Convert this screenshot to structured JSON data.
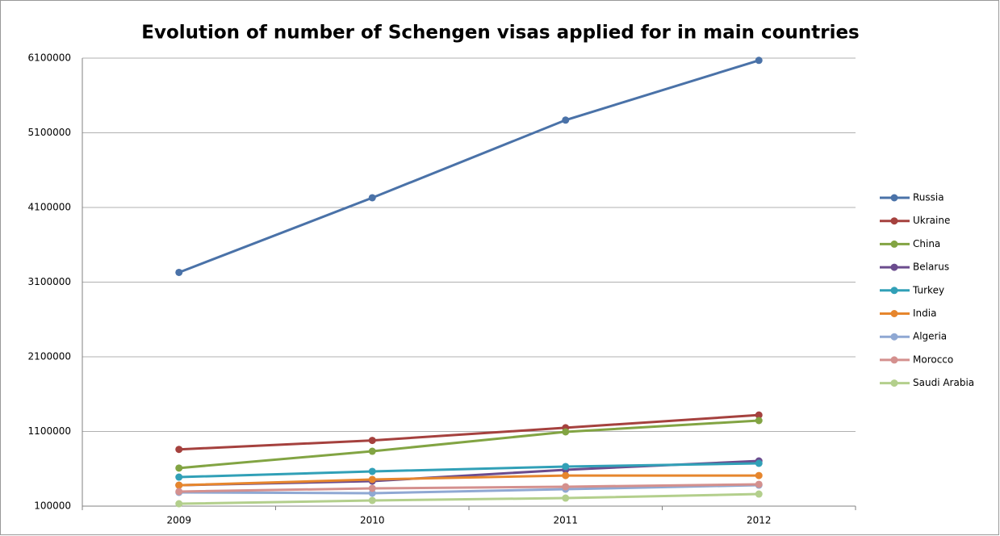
{
  "chart_data": {
    "type": "line",
    "title": "Evolution of number of Schengen visas applied for in main countries",
    "categories": [
      "2009",
      "2010",
      "2011",
      "2012"
    ],
    "ylim": [
      100000,
      6100000
    ],
    "yticks": [
      100000,
      1100000,
      2100000,
      3100000,
      4100000,
      5100000,
      6100000
    ],
    "grid": true,
    "legend": "right",
    "series": [
      {
        "name": "Russia",
        "color": "#4a72a8",
        "values": [
          3230000,
          4230000,
          5270000,
          6070000
        ]
      },
      {
        "name": "Ukraine",
        "color": "#a5413e",
        "values": [
          860000,
          980000,
          1150000,
          1320000
        ]
      },
      {
        "name": "China",
        "color": "#82a443",
        "values": [
          610000,
          835000,
          1095000,
          1246000
        ]
      },
      {
        "name": "Belarus",
        "color": "#6b4c8e",
        "values": [
          380000,
          435000,
          587000,
          705000
        ]
      },
      {
        "name": "Turkey",
        "color": "#31a0b7",
        "values": [
          489000,
          565000,
          630000,
          673000
        ]
      },
      {
        "name": "India",
        "color": "#e6862d",
        "values": [
          380000,
          457000,
          510000,
          510000
        ]
      },
      {
        "name": "Algeria",
        "color": "#8fa8d3",
        "values": [
          284000,
          273000,
          327000,
          381000
        ]
      },
      {
        "name": "Morocco",
        "color": "#d4908e",
        "values": [
          295000,
          338000,
          360000,
          392000
        ]
      },
      {
        "name": "Saudi Arabia",
        "color": "#b3cf8c",
        "values": [
          132000,
          176000,
          208000,
          262000
        ]
      }
    ]
  }
}
